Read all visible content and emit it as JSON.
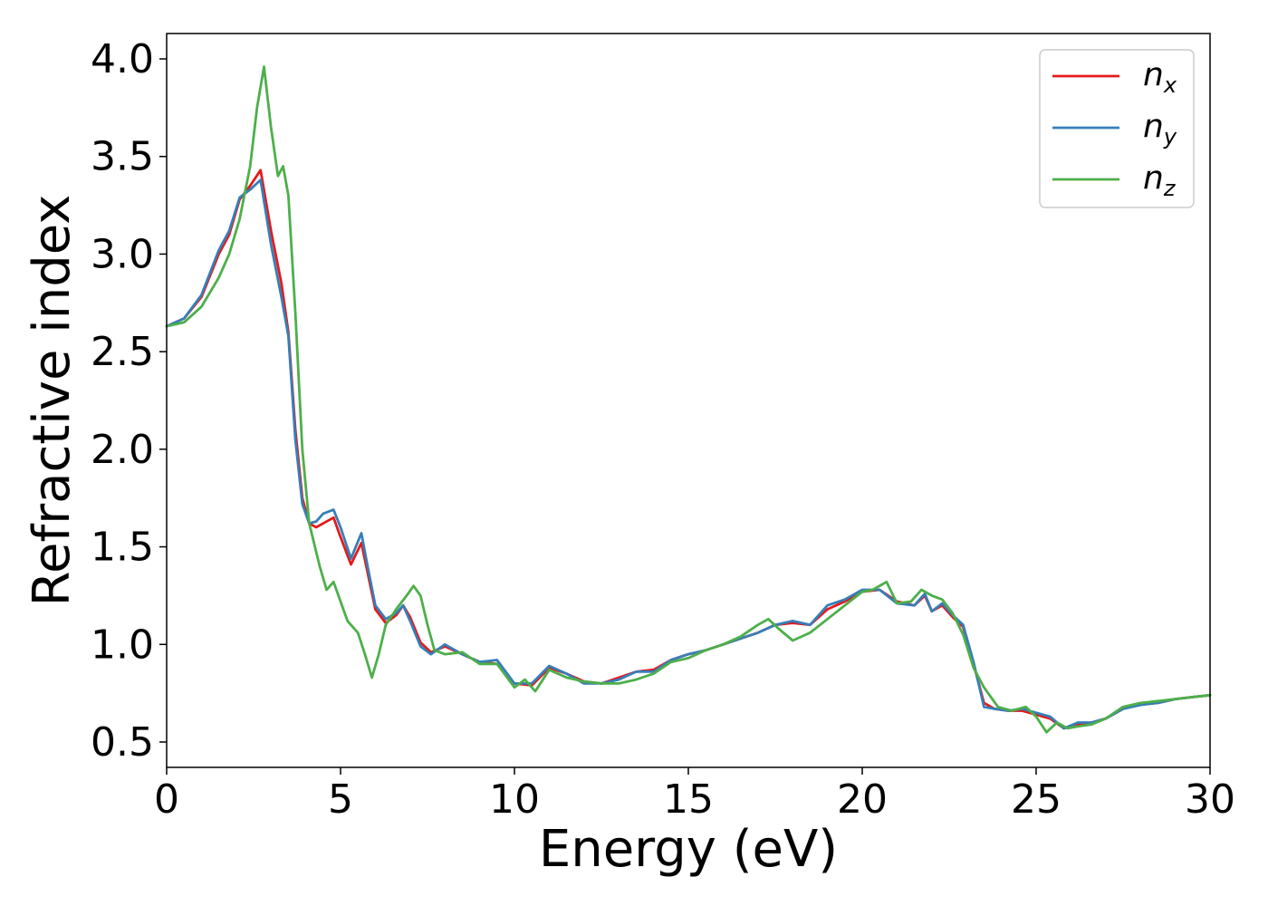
{
  "chart_data": {
    "type": "line",
    "xlabel": "Energy (eV)",
    "ylabel": "Refractive index",
    "xlim": [
      0,
      30
    ],
    "ylim": [
      0.37,
      4.13
    ],
    "xticks": [
      0,
      5,
      10,
      15,
      20,
      25,
      30
    ],
    "xtick_labels": [
      "0",
      "5",
      "10",
      "15",
      "20",
      "25",
      "30"
    ],
    "yticks": [
      0.5,
      1.0,
      1.5,
      2.0,
      2.5,
      3.0,
      3.5,
      4.0
    ],
    "ytick_labels": [
      "0.5",
      "1.0",
      "1.5",
      "2.0",
      "2.5",
      "3.0",
      "3.5",
      "4.0"
    ],
    "grid": false,
    "legend_position": "top-right",
    "series": [
      {
        "name": "n_x",
        "label_base": "n",
        "label_sub": "x",
        "color": "#e41a1c",
        "x": [
          0,
          0.5,
          1.0,
          1.5,
          1.8,
          2.1,
          2.4,
          2.7,
          3.0,
          3.3,
          3.5,
          3.7,
          3.9,
          4.1,
          4.3,
          4.5,
          4.8,
          5.0,
          5.3,
          5.6,
          5.8,
          6.0,
          6.3,
          6.6,
          6.8,
          7.0,
          7.3,
          7.6,
          8.0,
          8.5,
          9.0,
          9.5,
          10.0,
          10.5,
          11.0,
          11.5,
          12.0,
          12.5,
          13.0,
          13.5,
          14.0,
          14.5,
          15.0,
          15.5,
          16.0,
          16.5,
          17.0,
          17.5,
          18.0,
          18.5,
          19.0,
          19.5,
          20.0,
          20.5,
          21.0,
          21.5,
          21.8,
          22.0,
          22.3,
          22.6,
          22.9,
          23.2,
          23.5,
          23.8,
          24.2,
          24.6,
          25.0,
          25.4,
          25.8,
          26.2,
          26.6,
          27.0,
          27.5,
          28.0,
          28.5,
          29.0,
          29.5,
          30.0
        ],
        "y": [
          2.63,
          2.67,
          2.78,
          3.0,
          3.1,
          3.28,
          3.35,
          3.43,
          3.12,
          2.85,
          2.6,
          2.1,
          1.75,
          1.62,
          1.6,
          1.62,
          1.65,
          1.55,
          1.41,
          1.52,
          1.35,
          1.18,
          1.11,
          1.15,
          1.2,
          1.14,
          1.01,
          0.96,
          0.99,
          0.95,
          0.91,
          0.9,
          0.8,
          0.79,
          0.88,
          0.85,
          0.81,
          0.8,
          0.83,
          0.86,
          0.87,
          0.92,
          0.95,
          0.97,
          1.0,
          1.03,
          1.06,
          1.1,
          1.11,
          1.1,
          1.18,
          1.22,
          1.27,
          1.28,
          1.22,
          1.2,
          1.25,
          1.17,
          1.2,
          1.14,
          1.09,
          0.9,
          0.7,
          0.67,
          0.66,
          0.66,
          0.64,
          0.62,
          0.57,
          0.59,
          0.6,
          0.62,
          0.67,
          0.7,
          0.7,
          0.72,
          0.73,
          0.74
        ]
      },
      {
        "name": "n_y",
        "label_base": "n",
        "label_sub": "y",
        "color": "#377eb8",
        "x": [
          0,
          0.5,
          1.0,
          1.5,
          1.8,
          2.1,
          2.4,
          2.7,
          3.0,
          3.3,
          3.5,
          3.7,
          3.9,
          4.1,
          4.3,
          4.5,
          4.8,
          5.0,
          5.3,
          5.6,
          5.8,
          6.0,
          6.3,
          6.6,
          6.8,
          7.0,
          7.3,
          7.6,
          8.0,
          8.5,
          9.0,
          9.5,
          10.0,
          10.5,
          11.0,
          11.5,
          12.0,
          12.5,
          13.0,
          13.5,
          14.0,
          14.5,
          15.0,
          15.5,
          16.0,
          16.5,
          17.0,
          17.5,
          18.0,
          18.5,
          19.0,
          19.5,
          20.0,
          20.5,
          21.0,
          21.5,
          21.8,
          22.0,
          22.3,
          22.6,
          22.9,
          23.2,
          23.5,
          23.8,
          24.2,
          24.6,
          25.0,
          25.4,
          25.8,
          26.2,
          26.6,
          27.0,
          27.5,
          28.0,
          28.5,
          29.0,
          29.5,
          30.0
        ],
        "y": [
          2.63,
          2.67,
          2.79,
          3.02,
          3.12,
          3.29,
          3.33,
          3.38,
          3.05,
          2.78,
          2.58,
          2.05,
          1.72,
          1.62,
          1.63,
          1.67,
          1.69,
          1.6,
          1.44,
          1.57,
          1.38,
          1.2,
          1.13,
          1.16,
          1.2,
          1.12,
          0.99,
          0.95,
          1.0,
          0.95,
          0.91,
          0.92,
          0.8,
          0.8,
          0.89,
          0.85,
          0.8,
          0.8,
          0.82,
          0.86,
          0.86,
          0.92,
          0.95,
          0.97,
          1.0,
          1.03,
          1.06,
          1.1,
          1.12,
          1.1,
          1.2,
          1.23,
          1.28,
          1.28,
          1.21,
          1.2,
          1.26,
          1.17,
          1.21,
          1.15,
          1.1,
          0.91,
          0.68,
          0.67,
          0.66,
          0.67,
          0.65,
          0.63,
          0.57,
          0.6,
          0.6,
          0.62,
          0.67,
          0.69,
          0.7,
          0.72,
          0.73,
          0.74
        ]
      },
      {
        "name": "n_z",
        "label_base": "n",
        "label_sub": "z",
        "color": "#4daf4a",
        "x": [
          0,
          0.5,
          1.0,
          1.5,
          1.8,
          2.1,
          2.4,
          2.6,
          2.8,
          3.0,
          3.2,
          3.35,
          3.5,
          3.7,
          3.9,
          4.1,
          4.4,
          4.6,
          4.8,
          5.0,
          5.2,
          5.5,
          5.7,
          5.9,
          6.1,
          6.3,
          6.6,
          6.9,
          7.1,
          7.3,
          7.5,
          7.7,
          8.0,
          8.5,
          9.0,
          9.5,
          10.0,
          10.3,
          10.6,
          11.0,
          11.5,
          12.0,
          12.5,
          13.0,
          13.5,
          14.0,
          14.5,
          15.0,
          15.5,
          16.0,
          16.5,
          17.0,
          17.3,
          17.6,
          18.0,
          18.5,
          19.0,
          19.5,
          20.0,
          20.3,
          20.7,
          21.0,
          21.4,
          21.7,
          22.0,
          22.3,
          22.6,
          22.9,
          23.2,
          23.5,
          23.9,
          24.3,
          24.7,
          25.0,
          25.3,
          25.6,
          25.9,
          26.2,
          26.6,
          27.0,
          27.5,
          28.0,
          28.5,
          29.0,
          29.5,
          30.0
        ],
        "y": [
          2.63,
          2.65,
          2.73,
          2.88,
          3.0,
          3.18,
          3.45,
          3.75,
          3.96,
          3.65,
          3.4,
          3.45,
          3.3,
          2.7,
          2.0,
          1.62,
          1.4,
          1.28,
          1.32,
          1.22,
          1.12,
          1.06,
          0.95,
          0.83,
          0.95,
          1.1,
          1.18,
          1.25,
          1.3,
          1.25,
          1.1,
          0.97,
          0.95,
          0.96,
          0.9,
          0.9,
          0.78,
          0.82,
          0.76,
          0.87,
          0.83,
          0.81,
          0.8,
          0.8,
          0.82,
          0.85,
          0.91,
          0.93,
          0.97,
          1.0,
          1.04,
          1.1,
          1.13,
          1.08,
          1.02,
          1.06,
          1.13,
          1.2,
          1.27,
          1.28,
          1.32,
          1.21,
          1.22,
          1.28,
          1.25,
          1.23,
          1.16,
          1.05,
          0.88,
          0.78,
          0.68,
          0.66,
          0.68,
          0.63,
          0.55,
          0.6,
          0.57,
          0.58,
          0.59,
          0.62,
          0.68,
          0.7,
          0.71,
          0.72,
          0.73,
          0.74
        ]
      }
    ]
  }
}
